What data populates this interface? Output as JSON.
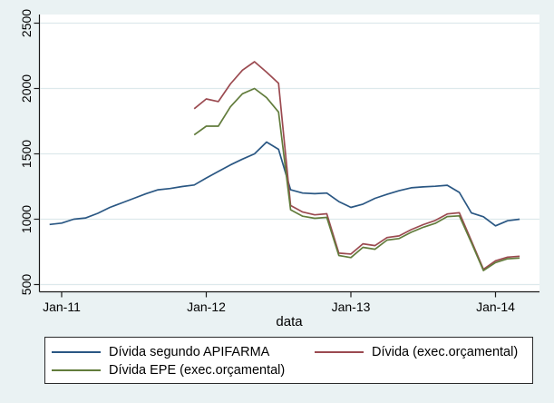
{
  "figure": {
    "background_color": "#eaf2f3",
    "plot_background_color": "#ffffff",
    "gridline_color": "#dde9ec",
    "axis_color": "#1a1a1a"
  },
  "chart_data": {
    "type": "line",
    "title": "",
    "xlabel": "data",
    "ylabel": "",
    "ylim": [
      500,
      2500
    ],
    "ytick_values": [
      500,
      1000,
      1500,
      2000,
      2500
    ],
    "ytick_labels": [
      "500",
      "1000",
      "1500",
      "2000",
      "2500"
    ],
    "xtick_labels": [
      "Jan-11",
      "Jan-12",
      "Jan-13",
      "Jan-14"
    ],
    "xtick_month_index": [
      1,
      13,
      25,
      37
    ],
    "grid": true,
    "legend_position": "bottom",
    "x_months": [
      "Dec-10",
      "Jan-11",
      "Feb-11",
      "Mar-11",
      "Apr-11",
      "May-11",
      "Jun-11",
      "Jul-11",
      "Aug-11",
      "Sep-11",
      "Oct-11",
      "Nov-11",
      "Dec-11",
      "Jan-12",
      "Feb-12",
      "Mar-12",
      "Apr-12",
      "May-12",
      "Jun-12",
      "Jul-12",
      "Aug-12",
      "Sep-12",
      "Oct-12",
      "Nov-12",
      "Dec-12",
      "Jan-13",
      "Feb-13",
      "Mar-13",
      "Apr-13",
      "May-13",
      "Jun-13",
      "Jul-13",
      "Aug-13",
      "Sep-13",
      "Oct-13",
      "Nov-13",
      "Dec-13",
      "Jan-14",
      "Feb-14",
      "Mar-14"
    ],
    "series": [
      {
        "name": "Dívida segundo APIFARMA",
        "color": "#2a5783",
        "start_month_index": 0,
        "values": [
          960,
          970,
          1000,
          1010,
          1045,
          1090,
          1125,
          1160,
          1195,
          1225,
          1235,
          1250,
          1262,
          1315,
          1365,
          1415,
          1460,
          1500,
          1590,
          1535,
          1225,
          1200,
          1195,
          1200,
          1135,
          1090,
          1115,
          1160,
          1190,
          1218,
          1240,
          1247,
          1252,
          1260,
          1205,
          1048,
          1019,
          949,
          988,
          1000
        ]
      },
      {
        "name": "Dívida (exec.orçamental)",
        "color": "#9b4a50",
        "start_month_index": 12,
        "values": [
          1845,
          1920,
          1900,
          2035,
          2140,
          2205,
          2125,
          2040,
          1105,
          1055,
          1033,
          1042,
          740,
          733,
          812,
          798,
          860,
          872,
          920,
          958,
          990,
          1040,
          1049,
          835,
          617,
          682,
          710,
          717
        ]
      },
      {
        "name": "Dívida EPE (exec.orçamental)",
        "color": "#627c3c",
        "start_month_index": 12,
        "values": [
          1645,
          1712,
          1712,
          1860,
          1960,
          2000,
          1930,
          1820,
          1072,
          1023,
          1007,
          1014,
          722,
          706,
          785,
          770,
          840,
          852,
          900,
          938,
          968,
          1020,
          1026,
          820,
          607,
          668,
          697,
          703
        ]
      }
    ]
  }
}
